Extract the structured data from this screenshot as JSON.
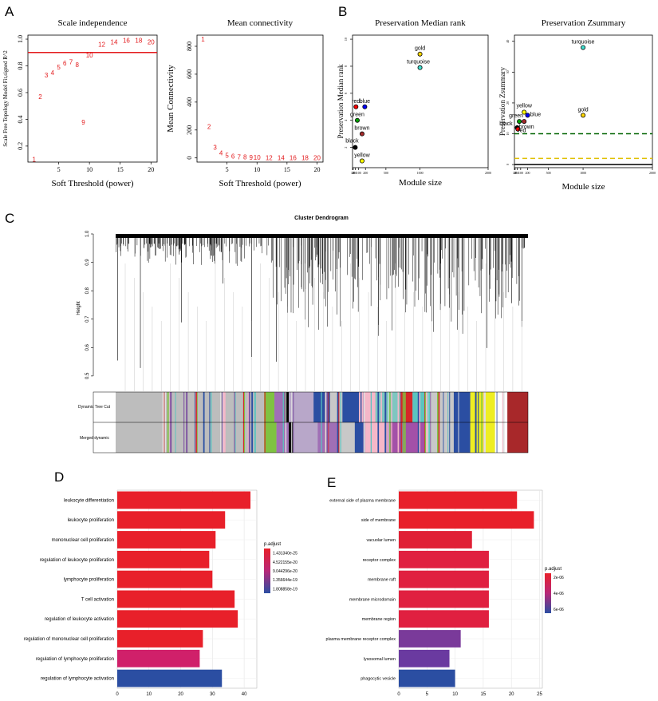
{
  "panel_labels": {
    "A": "A",
    "B": "B",
    "C": "C",
    "D": "D",
    "E": "E"
  },
  "chart_data": [
    {
      "id": "scale_independence",
      "type": "scatter",
      "title": "Scale independence",
      "xlabel": "Soft Threshold (power)",
      "ylabel": "Scale Free Topology Model Fit,signed R^2",
      "xlim": [
        0,
        21
      ],
      "ylim": [
        0.08,
        1.03
      ],
      "xticks": [
        "5",
        "10",
        "15",
        "20"
      ],
      "yticks": [
        "0.2",
        "0.4",
        "0.6",
        "0.8",
        "1.0"
      ],
      "threshold_line": 0.9,
      "threshold_color": "#e31a1c",
      "point_color": "#e31a1c",
      "points": [
        {
          "x": 1,
          "y": 0.1,
          "label": "1"
        },
        {
          "x": 2,
          "y": 0.57,
          "label": "2"
        },
        {
          "x": 3,
          "y": 0.73,
          "label": "3"
        },
        {
          "x": 4,
          "y": 0.75,
          "label": "4"
        },
        {
          "x": 5,
          "y": 0.79,
          "label": "5"
        },
        {
          "x": 6,
          "y": 0.82,
          "label": "6"
        },
        {
          "x": 7,
          "y": 0.83,
          "label": "7"
        },
        {
          "x": 8,
          "y": 0.81,
          "label": "8"
        },
        {
          "x": 9,
          "y": 0.38,
          "label": "9"
        },
        {
          "x": 10,
          "y": 0.88,
          "label": "10"
        },
        {
          "x": 12,
          "y": 0.96,
          "label": "12"
        },
        {
          "x": 14,
          "y": 0.98,
          "label": "14"
        },
        {
          "x": 16,
          "y": 0.99,
          "label": "16"
        },
        {
          "x": 18,
          "y": 0.99,
          "label": "18"
        },
        {
          "x": 20,
          "y": 0.98,
          "label": "20"
        }
      ]
    },
    {
      "id": "mean_connectivity",
      "type": "scatter",
      "title": "Mean connectivity",
      "xlabel": "Soft Threshold (power)",
      "ylabel": "Mean Connectivity",
      "xlim": [
        0,
        21
      ],
      "ylim": [
        -30,
        880
      ],
      "xticks": [
        "5",
        "10",
        "15",
        "20"
      ],
      "yticks": [
        "0",
        "200",
        "400",
        "600",
        "800"
      ],
      "point_color": "#e31a1c",
      "points": [
        {
          "x": 1,
          "y": 850,
          "label": "1"
        },
        {
          "x": 2,
          "y": 225,
          "label": "2"
        },
        {
          "x": 3,
          "y": 75,
          "label": "3"
        },
        {
          "x": 4,
          "y": 35,
          "label": "4"
        },
        {
          "x": 5,
          "y": 20,
          "label": "5"
        },
        {
          "x": 6,
          "y": 12,
          "label": "6"
        },
        {
          "x": 7,
          "y": 8,
          "label": "7"
        },
        {
          "x": 8,
          "y": 6,
          "label": "8"
        },
        {
          "x": 9,
          "y": 4,
          "label": "9"
        },
        {
          "x": 10,
          "y": 3,
          "label": "10"
        },
        {
          "x": 12,
          "y": 2,
          "label": "12"
        },
        {
          "x": 14,
          "y": 1,
          "label": "14"
        },
        {
          "x": 16,
          "y": 1,
          "label": "16"
        },
        {
          "x": 18,
          "y": 1,
          "label": "18"
        },
        {
          "x": 20,
          "y": 1,
          "label": "20"
        }
      ]
    },
    {
      "id": "preservation_median_rank",
      "type": "scatter",
      "title": "Preservation Median rank",
      "xlabel": "Module size",
      "ylabel": "Preservation Median rank",
      "log_x": true,
      "xlim": [
        10,
        2000
      ],
      "ylim": [
        0.5,
        10.3
      ],
      "xticks": [
        "10",
        "20",
        "50",
        "100",
        "200",
        "500",
        "1000",
        "2000"
      ],
      "yticks": [
        "2",
        "4",
        "6",
        "8",
        "10"
      ],
      "points": [
        {
          "label": "gold",
          "x": 1000,
          "y": 8.9,
          "color": "#ffd700"
        },
        {
          "label": "turquoise",
          "x": 1000,
          "y": 7.9,
          "color": "#40e0d0"
        },
        {
          "label": "red",
          "x": 60,
          "y": 5.0,
          "color": "#ff0000"
        },
        {
          "label": "blue",
          "x": 190,
          "y": 5.0,
          "color": "#0000ff"
        },
        {
          "label": "green",
          "x": 80,
          "y": 4.0,
          "color": "#00a000"
        },
        {
          "label": "brown",
          "x": 150,
          "y": 3.0,
          "color": "#a52a2a"
        },
        {
          "label": "black",
          "x": 50,
          "y": 2.0,
          "color": "#000000"
        },
        {
          "label": "yellow",
          "x": 150,
          "y": 1.0,
          "color": "#ffff00"
        }
      ]
    },
    {
      "id": "preservation_zsummary",
      "type": "scatter",
      "title": "Preservation Zsummary",
      "xlabel": "Module size",
      "ylabel": "Preservation Zsummary",
      "log_x": true,
      "xlim": [
        10,
        2000
      ],
      "ylim": [
        -1,
        42
      ],
      "xticks": [
        "10",
        "20",
        "50",
        "100",
        "200",
        "500",
        "1000",
        "2000"
      ],
      "yticks": [
        "0",
        "10",
        "20",
        "30",
        "40"
      ],
      "ref_lines": [
        {
          "y": 2,
          "color": "#e0c000",
          "dash": true
        },
        {
          "y": 10,
          "color": "#006400",
          "dash": true
        },
        {
          "y": 0,
          "color": "#000000",
          "dash": false
        }
      ],
      "points": [
        {
          "label": "turquoise",
          "x": 1000,
          "y": 38,
          "color": "#40e0d0"
        },
        {
          "label": "gold",
          "x": 1000,
          "y": 16,
          "color": "#ffd700"
        },
        {
          "label": "yellow",
          "x": 150,
          "y": 17,
          "color": "#ffff00"
        },
        {
          "label": "blue",
          "x": 200,
          "y": 16,
          "color": "#0000ff"
        },
        {
          "label": "green",
          "x": 80,
          "y": 14,
          "color": "#00a000"
        },
        {
          "label": "brown",
          "x": 150,
          "y": 14,
          "color": "#a52a2a"
        },
        {
          "label": "black",
          "x": 50,
          "y": 12,
          "color": "#000000"
        },
        {
          "label": "red",
          "x": 60,
          "y": 11.5,
          "color": "#ff0000"
        }
      ]
    },
    {
      "id": "cluster_dendrogram",
      "type": "dendrogram",
      "title": "Cluster Dendrogram",
      "ylabel": "Height",
      "ylim": [
        0.48,
        1.0
      ],
      "yticks": [
        "0.5",
        "0.6",
        "0.7",
        "0.8",
        "0.9",
        "1.0"
      ],
      "row_labels": [
        "Dynamic Tree Cut",
        "Merged dynamic"
      ],
      "merged_segments": [
        {
          "start": 0.0,
          "end": 0.36,
          "color": "#bdbdbd"
        },
        {
          "start": 0.36,
          "end": 0.39,
          "color": "#7fc241"
        },
        {
          "start": 0.39,
          "end": 0.42,
          "color": "#a06fb6"
        },
        {
          "start": 0.42,
          "end": 0.43,
          "color": "#000000"
        },
        {
          "start": 0.43,
          "end": 0.49,
          "color": "#b8a7c9"
        },
        {
          "start": 0.49,
          "end": 0.54,
          "color": "#a06fb6"
        },
        {
          "start": 0.54,
          "end": 0.58,
          "color": "#c8c8c8"
        },
        {
          "start": 0.58,
          "end": 0.605,
          "color": "#2b4ea2"
        },
        {
          "start": 0.605,
          "end": 0.66,
          "color": "#f5b7c8"
        },
        {
          "start": 0.66,
          "end": 0.75,
          "color": "#a350a8"
        },
        {
          "start": 0.75,
          "end": 0.82,
          "color": "#c8c8c8"
        },
        {
          "start": 0.82,
          "end": 0.86,
          "color": "#2b4ea2"
        },
        {
          "start": 0.86,
          "end": 0.92,
          "color": "#eeee22"
        },
        {
          "start": 0.92,
          "end": 0.95,
          "color": "#ffffff"
        },
        {
          "start": 0.95,
          "end": 1.0,
          "color": "#a8282a"
        }
      ],
      "dynamic_segments": [
        {
          "start": 0.0,
          "end": 0.36,
          "color": "#bdbdbd"
        },
        {
          "start": 0.36,
          "end": 0.385,
          "color": "#7fc241"
        },
        {
          "start": 0.385,
          "end": 0.41,
          "color": "#a06fb6"
        },
        {
          "start": 0.41,
          "end": 0.42,
          "color": "#000000"
        },
        {
          "start": 0.42,
          "end": 0.48,
          "color": "#b8a7c9"
        },
        {
          "start": 0.48,
          "end": 0.52,
          "color": "#2b4ea2"
        },
        {
          "start": 0.52,
          "end": 0.55,
          "color": "#c8c8c8"
        },
        {
          "start": 0.55,
          "end": 0.59,
          "color": "#2b4ea2"
        },
        {
          "start": 0.59,
          "end": 0.63,
          "color": "#f5b7c8"
        },
        {
          "start": 0.63,
          "end": 0.69,
          "color": "#7fc6c0"
        },
        {
          "start": 0.69,
          "end": 0.72,
          "color": "#d62728"
        },
        {
          "start": 0.72,
          "end": 0.76,
          "color": "#5bc4bf"
        },
        {
          "start": 0.76,
          "end": 0.82,
          "color": "#c8c8c8"
        },
        {
          "start": 0.82,
          "end": 0.86,
          "color": "#2b4ea2"
        },
        {
          "start": 0.86,
          "end": 0.92,
          "color": "#eeee22"
        },
        {
          "start": 0.92,
          "end": 0.95,
          "color": "#ffffff"
        },
        {
          "start": 0.95,
          "end": 1.0,
          "color": "#a8282a"
        }
      ]
    },
    {
      "id": "go_bp",
      "type": "bar",
      "orientation": "horizontal",
      "categories": [
        "leukocyte differentiation",
        "leukocyte proliferation",
        "mononuclear cell proliferation",
        "regulation of leukocyte proliferation",
        "lymphocyte proliferation",
        "T cell activation",
        "regulation of leukocyte activation",
        "regulation of mononuclear cell proliferation",
        "regulation of lymphocyte proliferation",
        "regulation of lymphocyte activation"
      ],
      "values": [
        42,
        34,
        31,
        29,
        30,
        37,
        38,
        27,
        26,
        33
      ],
      "colors": [
        "#e8202a",
        "#e8202a",
        "#e8202a",
        "#e8202a",
        "#e8202a",
        "#e8202a",
        "#e8202a",
        "#e8202a",
        "#d0206a",
        "#2b4ea2"
      ],
      "xlim": [
        0,
        44
      ],
      "xticks": [
        "0",
        "10",
        "20",
        "30",
        "40"
      ],
      "legend_title": "p.adjust",
      "legend_labels": [
        "1.431340e-25",
        "4.522155e-20",
        "9.044296e-20",
        "1.356644e-19",
        "1.808858e-19"
      ]
    },
    {
      "id": "go_cc",
      "type": "bar",
      "orientation": "horizontal",
      "categories": [
        "external side of plasma membrane",
        "side of membrane",
        "vacuolar lumen",
        "receptor complex",
        "membrane raft",
        "membrane microdomain",
        "membrane region",
        "plasma membrane receptor complex",
        "lysosomal lumen",
        "phagocytic vesicle"
      ],
      "values": [
        21,
        24,
        13,
        16,
        16,
        16,
        16,
        11,
        9,
        10
      ],
      "colors": [
        "#e8202a",
        "#e8202a",
        "#e02035",
        "#e02040",
        "#e02040",
        "#e02040",
        "#e02040",
        "#7a3a9a",
        "#6a3aa0",
        "#2b4ea2"
      ],
      "xlim": [
        0,
        25.5
      ],
      "xticks": [
        "0",
        "5",
        "10",
        "15",
        "20",
        "25"
      ],
      "legend_title": "p.adjust",
      "legend_labels": [
        "2e-06",
        "4e-06",
        "6e-06"
      ]
    }
  ]
}
